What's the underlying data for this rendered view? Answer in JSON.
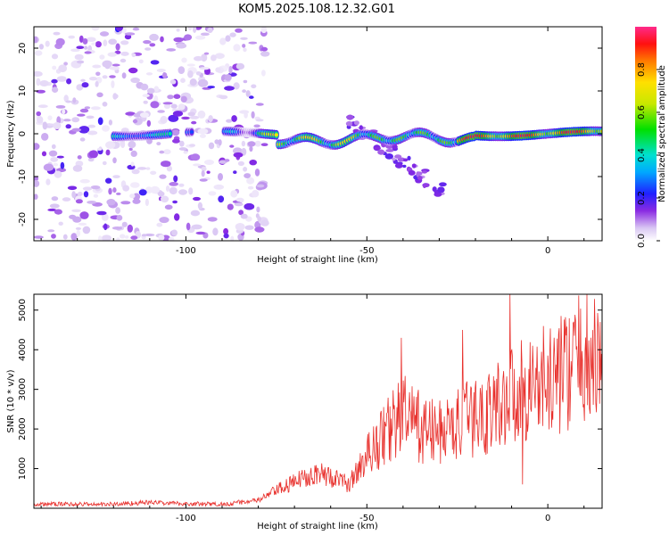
{
  "title": "KOM5.2025.108.12.32.G01",
  "chart_data": [
    {
      "type": "heatmap",
      "name": "spectrogram",
      "xlabel": "Height of straight line (km)",
      "ylabel": "Frequency (Hz)",
      "xlim": [
        -142,
        15
      ],
      "ylim": [
        -25,
        25
      ],
      "xticks": [
        -100,
        -50,
        0
      ],
      "yticks": [
        -20,
        -10,
        0,
        10,
        20
      ],
      "colorbar": {
        "label": "Normalized spectral amplitude",
        "range": [
          0,
          1
        ],
        "ticks": [
          "0.0",
          "0.2",
          "0.4",
          "0.6",
          "0.8"
        ]
      },
      "features": [
        {
          "description": "scattered low-amplitude noise",
          "x_range": [
            -142,
            -78
          ],
          "y_range": [
            -25,
            25
          ],
          "amplitude": 0.1
        },
        {
          "description": "carrier trace near 0 Hz",
          "x_range": [
            -120,
            15
          ],
          "y_center": 0,
          "amplitude_peak": 0.95
        },
        {
          "description": "weaker streak drifting downward",
          "x_range": [
            -55,
            -28
          ],
          "y_range": [
            -14,
            3
          ],
          "amplitude": 0.15
        }
      ]
    },
    {
      "type": "line",
      "name": "snr",
      "xlabel": "Height of straight line (km)",
      "ylabel": "SNR (10 * v/v)",
      "xlim": [
        -142,
        15
      ],
      "ylim": [
        0,
        5400
      ],
      "xticks": [
        -100,
        -50,
        0
      ],
      "yticks": [
        1000,
        2000,
        3000,
        4000,
        5000
      ],
      "color": "#e8302c",
      "envelope": {
        "x": [
          -142,
          -120,
          -110,
          -100,
          -90,
          -80,
          -75,
          -70,
          -65,
          -60,
          -55,
          -50,
          -45,
          -40,
          -35,
          -30,
          -25,
          -20,
          -15,
          -10,
          -5,
          0,
          5,
          10,
          15
        ],
        "y": [
          100,
          100,
          150,
          110,
          100,
          200,
          450,
          650,
          900,
          800,
          600,
          1300,
          1900,
          2400,
          2000,
          1900,
          2100,
          2300,
          2500,
          2900,
          3100,
          3200,
          3500,
          3800,
          3600
        ]
      },
      "spikes": [
        {
          "x": -40.5,
          "y": 4300
        },
        {
          "x": -23.5,
          "y": 4500
        },
        {
          "x": -10.5,
          "y": 5400
        },
        {
          "x": -7,
          "y": 600
        },
        {
          "x": 14.5,
          "y": 4700
        }
      ]
    }
  ]
}
